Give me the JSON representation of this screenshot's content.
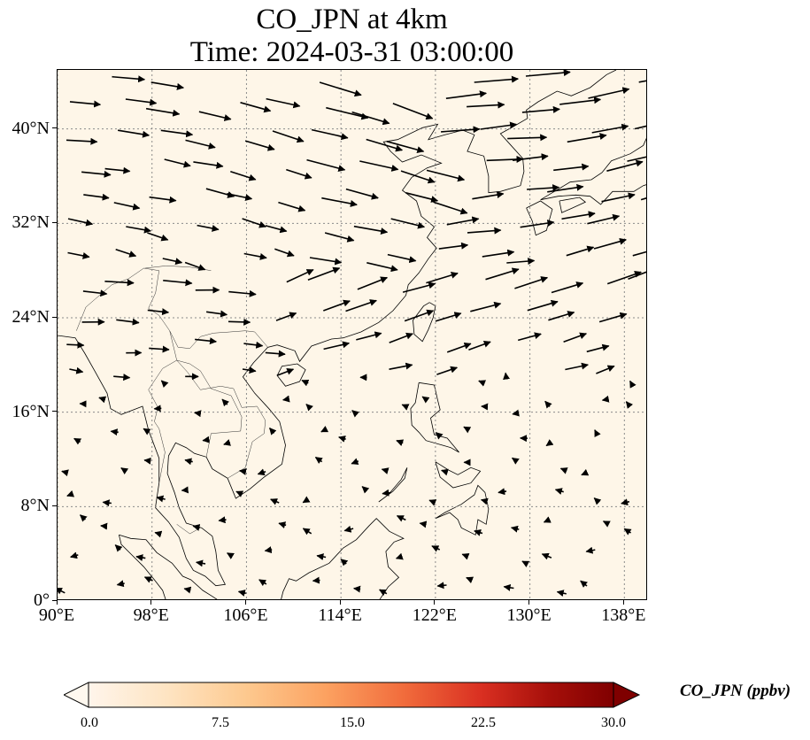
{
  "title": {
    "line1": "CO_JPN at 4km",
    "line2": "Time: 2024-03-31 03:00:00"
  },
  "map": {
    "extent": {
      "lon_min": 90,
      "lon_max": 140,
      "lat_min": 0,
      "lat_max": 45
    },
    "background_color": "#fef6e8",
    "coastline_color": "#000000",
    "gridline_color": "#8a8a8a",
    "gridlines": true,
    "lon_ticks": [
      {
        "value": 90,
        "label": "90°E"
      },
      {
        "value": 98,
        "label": "98°E"
      },
      {
        "value": 106,
        "label": "106°E"
      },
      {
        "value": 114,
        "label": "114°E"
      },
      {
        "value": 122,
        "label": "122°E"
      },
      {
        "value": 130,
        "label": "130°E"
      },
      {
        "value": 138,
        "label": "138°E"
      }
    ],
    "lat_ticks": [
      {
        "value": 0,
        "label": "0°"
      },
      {
        "value": 8,
        "label": "8°N"
      },
      {
        "value": 16,
        "label": "16°N"
      },
      {
        "value": 24,
        "label": "24°N"
      },
      {
        "value": 32,
        "label": "32°N"
      },
      {
        "value": 40,
        "label": "40°N"
      }
    ],
    "wind_vectors": {
      "field": "northern half strong westerly/southwesterly flow, weak easterly winds in the tropics",
      "grid_spacing_deg": 3.4
    },
    "coastlines": [
      {
        "name": "asia-mainland",
        "coords": [
          [
            90,
            22.5
          ],
          [
            91.5,
            22.3
          ],
          [
            92.3,
            21.0
          ],
          [
            93.2,
            19.4
          ],
          [
            94.2,
            17.6
          ],
          [
            94.5,
            16.3
          ],
          [
            95.4,
            15.8
          ],
          [
            97.2,
            16.5
          ],
          [
            97.7,
            14.5
          ],
          [
            98.6,
            12.1
          ],
          [
            98.6,
            10.0
          ],
          [
            98.3,
            8.0
          ],
          [
            98.3,
            7.9
          ],
          [
            99.4,
            6.7
          ],
          [
            100.3,
            5.4
          ],
          [
            100.9,
            3.6
          ],
          [
            101.5,
            2.6
          ],
          [
            102.5,
            2.1
          ],
          [
            103.4,
            1.3
          ],
          [
            104.2,
            1.4
          ],
          [
            103.6,
            2.6
          ],
          [
            103.4,
            4.2
          ],
          [
            103.1,
            5.5
          ],
          [
            102.2,
            6.2
          ],
          [
            100.9,
            6.6
          ],
          [
            100.3,
            7.9
          ],
          [
            99.9,
            9.2
          ],
          [
            99.3,
            10.8
          ],
          [
            99.4,
            12.3
          ],
          [
            100.0,
            13.4
          ],
          [
            100.9,
            13.0
          ],
          [
            101.6,
            12.5
          ],
          [
            102.6,
            12.2
          ],
          [
            103.1,
            11.2
          ],
          [
            104.4,
            10.4
          ],
          [
            105.1,
            8.7
          ],
          [
            106.3,
            9.5
          ],
          [
            107.5,
            10.5
          ],
          [
            109.0,
            11.6
          ],
          [
            109.3,
            13.2
          ],
          [
            108.8,
            15.2
          ],
          [
            107.9,
            16.3
          ],
          [
            106.7,
            17.6
          ],
          [
            105.7,
            19.0
          ],
          [
            106.6,
            20.2
          ],
          [
            107.8,
            21.5
          ],
          [
            108.6,
            21.7
          ],
          [
            110.1,
            21.2
          ],
          [
            110.5,
            20.3
          ],
          [
            111.5,
            21.6
          ],
          [
            113.2,
            22.2
          ],
          [
            114.2,
            22.3
          ],
          [
            115.7,
            22.8
          ],
          [
            117.2,
            23.6
          ],
          [
            118.4,
            24.6
          ],
          [
            119.5,
            25.9
          ],
          [
            119.7,
            26.8
          ],
          [
            120.6,
            27.8
          ],
          [
            121.4,
            29.0
          ],
          [
            122.1,
            29.9
          ],
          [
            121.3,
            30.8
          ],
          [
            121.9,
            31.7
          ],
          [
            120.8,
            32.6
          ],
          [
            120.4,
            33.9
          ],
          [
            119.2,
            34.8
          ],
          [
            120.0,
            35.9
          ],
          [
            121.3,
            36.7
          ],
          [
            122.5,
            37.1
          ],
          [
            120.8,
            37.8
          ],
          [
            119.2,
            37.2
          ],
          [
            118.2,
            38.1
          ],
          [
            117.6,
            38.9
          ],
          [
            118.8,
            39.1
          ],
          [
            120.9,
            40.1
          ],
          [
            122.2,
            40.4
          ],
          [
            121.4,
            39.1
          ],
          [
            122.8,
            39.5
          ],
          [
            124.3,
            39.9
          ],
          [
            125.3,
            39.5
          ],
          [
            124.7,
            38.1
          ],
          [
            126.1,
            37.7
          ],
          [
            126.5,
            36.0
          ],
          [
            126.5,
            34.6
          ],
          [
            127.5,
            34.7
          ],
          [
            129.2,
            35.2
          ],
          [
            129.5,
            36.4
          ],
          [
            129.4,
            37.5
          ],
          [
            128.4,
            38.6
          ],
          [
            127.5,
            39.6
          ],
          [
            128.6,
            40.2
          ],
          [
            129.8,
            40.9
          ],
          [
            129.7,
            41.6
          ],
          [
            130.7,
            42.3
          ],
          [
            132.3,
            43.2
          ],
          [
            133.5,
            42.8
          ],
          [
            135.1,
            43.5
          ],
          [
            136.5,
            44.6
          ],
          [
            137.3,
            45.0
          ]
        ]
      },
      {
        "name": "luzon",
        "coords": [
          [
            120.6,
            18.5
          ],
          [
            121.9,
            18.3
          ],
          [
            122.2,
            17.0
          ],
          [
            122.4,
            16.2
          ],
          [
            121.6,
            15.5
          ],
          [
            121.9,
            14.1
          ],
          [
            123.0,
            13.8
          ],
          [
            124.0,
            12.6
          ],
          [
            123.3,
            13.0
          ],
          [
            122.6,
            13.2
          ],
          [
            121.2,
            13.6
          ],
          [
            120.6,
            14.3
          ],
          [
            120.0,
            14.9
          ],
          [
            119.9,
            16.3
          ],
          [
            120.3,
            16.8
          ],
          [
            120.6,
            18.5
          ]
        ]
      },
      {
        "name": "mindanao",
        "coords": [
          [
            122.0,
            7.0
          ],
          [
            122.8,
            7.5
          ],
          [
            123.6,
            7.9
          ],
          [
            124.2,
            8.2
          ],
          [
            125.3,
            9.0
          ],
          [
            125.6,
            9.8
          ],
          [
            126.2,
            9.2
          ],
          [
            126.5,
            7.8
          ],
          [
            126.3,
            6.5
          ],
          [
            125.6,
            6.9
          ],
          [
            125.4,
            5.6
          ],
          [
            124.2,
            6.2
          ],
          [
            123.9,
            6.9
          ],
          [
            123.2,
            7.5
          ],
          [
            122.0,
            7.0
          ]
        ]
      },
      {
        "name": "visayas",
        "coords": [
          [
            122.0,
            11.8
          ],
          [
            123.1,
            11.1
          ],
          [
            123.9,
            10.7
          ],
          [
            125.0,
            11.3
          ],
          [
            125.8,
            11.0
          ],
          [
            125.0,
            10.0
          ],
          [
            123.5,
            9.6
          ],
          [
            122.4,
            10.5
          ],
          [
            122.0,
            11.8
          ]
        ]
      },
      {
        "name": "taiwan",
        "coords": [
          [
            121.5,
            25.3
          ],
          [
            122.0,
            25.0
          ],
          [
            121.8,
            24.0
          ],
          [
            121.4,
            23.0
          ],
          [
            120.9,
            22.0
          ],
          [
            120.2,
            22.6
          ],
          [
            120.1,
            23.8
          ],
          [
            121.0,
            25.0
          ],
          [
            121.5,
            25.3
          ]
        ]
      },
      {
        "name": "hainan",
        "coords": [
          [
            108.6,
            19.1
          ],
          [
            109.3,
            18.2
          ],
          [
            110.5,
            18.6
          ],
          [
            111.0,
            19.6
          ],
          [
            110.3,
            20.1
          ],
          [
            109.0,
            19.9
          ],
          [
            108.6,
            19.1
          ]
        ]
      },
      {
        "name": "kyushu",
        "coords": [
          [
            129.7,
            33.3
          ],
          [
            130.9,
            33.9
          ],
          [
            131.9,
            33.2
          ],
          [
            131.4,
            31.4
          ],
          [
            130.5,
            31.0
          ],
          [
            130.2,
            32.2
          ],
          [
            129.7,
            33.3
          ]
        ]
      },
      {
        "name": "shikoku",
        "coords": [
          [
            132.5,
            33.9
          ],
          [
            134.2,
            34.2
          ],
          [
            134.7,
            33.8
          ],
          [
            133.6,
            33.3
          ],
          [
            132.7,
            32.9
          ],
          [
            132.5,
            33.9
          ]
        ]
      },
      {
        "name": "honshu",
        "coords": [
          [
            130.9,
            34.0
          ],
          [
            131.9,
            34.6
          ],
          [
            133.4,
            35.5
          ],
          [
            135.2,
            35.7
          ],
          [
            136.1,
            36.3
          ],
          [
            136.9,
            37.3
          ],
          [
            138.5,
            37.9
          ],
          [
            139.6,
            38.6
          ],
          [
            140.0,
            39.5
          ],
          [
            140.0,
            41.2
          ],
          [
            141.4,
            41.4
          ],
          [
            141.9,
            39.8
          ],
          [
            141.0,
            38.3
          ],
          [
            140.9,
            36.9
          ],
          [
            140.6,
            35.5
          ],
          [
            139.6,
            35.2
          ],
          [
            138.8,
            34.7
          ],
          [
            137.0,
            34.7
          ],
          [
            136.0,
            33.6
          ],
          [
            135.1,
            34.3
          ],
          [
            133.9,
            34.4
          ],
          [
            132.4,
            34.3
          ],
          [
            130.9,
            34.0
          ]
        ]
      },
      {
        "name": "borneo-north",
        "coords": [
          [
            117.2,
            0.0
          ],
          [
            118.0,
            1.2
          ],
          [
            118.9,
            2.0
          ],
          [
            118.0,
            2.9
          ],
          [
            117.8,
            4.2
          ],
          [
            118.5,
            5.0
          ],
          [
            119.3,
            5.3
          ],
          [
            118.1,
            5.9
          ],
          [
            117.0,
            7.0
          ],
          [
            116.4,
            6.4
          ],
          [
            115.3,
            5.2
          ],
          [
            114.2,
            4.5
          ],
          [
            113.0,
            3.2
          ],
          [
            111.3,
            2.4
          ],
          [
            110.2,
            1.7
          ],
          [
            109.6,
            1.9
          ],
          [
            109.1,
            0.8
          ],
          [
            108.9,
            0.0
          ]
        ]
      },
      {
        "name": "sumatra-north",
        "coords": [
          [
            95.2,
            5.6
          ],
          [
            96.2,
            5.3
          ],
          [
            97.5,
            5.2
          ],
          [
            98.4,
            4.1
          ],
          [
            99.7,
            3.2
          ],
          [
            100.6,
            2.1
          ],
          [
            101.3,
            1.8
          ],
          [
            102.3,
            0.9
          ],
          [
            103.1,
            0.4
          ],
          [
            103.7,
            0.0
          ]
        ]
      },
      {
        "name": "sumatra-west",
        "coords": [
          [
            95.2,
            5.6
          ],
          [
            95.4,
            4.8
          ],
          [
            96.3,
            3.9
          ],
          [
            97.3,
            2.9
          ],
          [
            98.2,
            1.8
          ],
          [
            98.9,
            0.9
          ],
          [
            99.2,
            0.0
          ]
        ]
      },
      {
        "name": "palawan",
        "coords": [
          [
            117.2,
            8.4
          ],
          [
            118.4,
            9.3
          ],
          [
            119.4,
            10.4
          ],
          [
            119.6,
            11.3
          ],
          [
            119.1,
            10.3
          ],
          [
            118.0,
            9.0
          ],
          [
            117.2,
            8.4
          ]
        ]
      }
    ],
    "borders": [
      [
        [
          91.6,
          22.9
        ],
        [
          92.4,
          24.9
        ],
        [
          93.2,
          25.6
        ],
        [
          94.6,
          26.8
        ],
        [
          96.0,
          27.3
        ],
        [
          97.3,
          28.2
        ],
        [
          98.6,
          28.0
        ],
        [
          98.3,
          26.1
        ],
        [
          97.7,
          24.8
        ],
        [
          98.6,
          24.2
        ],
        [
          99.5,
          22.9
        ],
        [
          100.2,
          21.5
        ],
        [
          101.2,
          21.4
        ],
        [
          102.1,
          22.4
        ],
        [
          103.2,
          22.7
        ],
        [
          104.6,
          22.8
        ],
        [
          105.9,
          22.9
        ],
        [
          106.7,
          22.8
        ],
        [
          107.8,
          21.5
        ]
      ],
      [
        [
          97.4,
          28.2
        ],
        [
          99.2,
          28.4
        ],
        [
          101.2,
          28.3
        ],
        [
          103.0,
          28.0
        ]
      ],
      [
        [
          99.5,
          22.9
        ],
        [
          100.1,
          20.4
        ],
        [
          101.2,
          20.1
        ],
        [
          102.1,
          19.5
        ],
        [
          103.0,
          18.0
        ],
        [
          104.7,
          17.4
        ],
        [
          105.6,
          15.6
        ],
        [
          105.5,
          14.4
        ],
        [
          103.0,
          14.2
        ],
        [
          102.6,
          12.2
        ]
      ],
      [
        [
          100.1,
          20.4
        ],
        [
          101.0,
          19.4
        ],
        [
          102.1,
          17.9
        ],
        [
          103.8,
          18.2
        ],
        [
          104.9,
          18.0
        ],
        [
          105.6,
          16.4
        ],
        [
          106.9,
          16.5
        ],
        [
          107.6,
          15.3
        ],
        [
          107.5,
          14.2
        ],
        [
          106.5,
          13.5
        ],
        [
          105.9,
          11.3
        ],
        [
          104.4,
          10.4
        ]
      ],
      [
        [
          98.6,
          10.0
        ],
        [
          99.1,
          12.6
        ],
        [
          98.6,
          14.6
        ],
        [
          98.2,
          15.2
        ],
        [
          98.5,
          16.4
        ],
        [
          97.7,
          17.9
        ],
        [
          98.9,
          19.7
        ],
        [
          100.1,
          20.4
        ]
      ],
      [
        [
          100.1,
          6.5
        ],
        [
          101.2,
          5.7
        ],
        [
          102.1,
          6.2
        ]
      ]
    ]
  }
}
